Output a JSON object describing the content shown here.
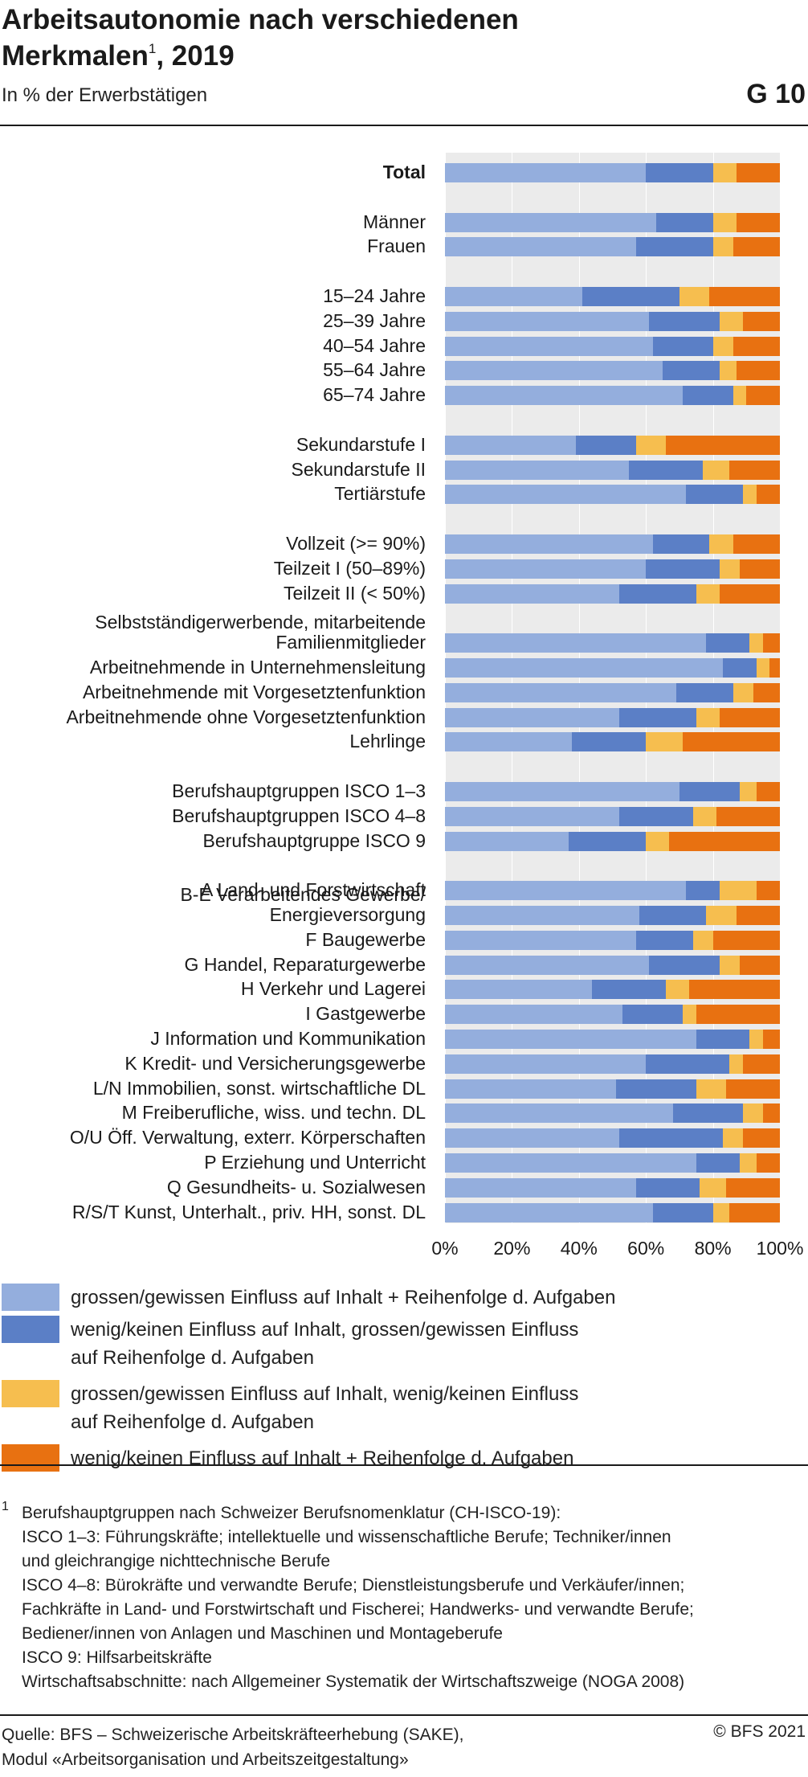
{
  "header": {
    "title": "Arbeitsautonomie nach verschiedenen\nMerkmalen",
    "title_footnote": "1",
    "title_suffix": ", 2019",
    "subtitle": "In % der Erwerbstätigen",
    "graphic_number": "G 10"
  },
  "chart_data": {
    "type": "bar",
    "orientation": "horizontal",
    "stacked": true,
    "title": "Arbeitsautonomie nach verschiedenen Merkmalen, 2019",
    "xlabel": "",
    "ylabel": "",
    "xlim": [
      0,
      100
    ],
    "x_ticks": [
      "0%",
      "20%",
      "40%",
      "60%",
      "80%",
      "100%"
    ],
    "grid": true,
    "legend_position": "bottom",
    "colors": [
      "#94aedd",
      "#5b7fc6",
      "#f6be4f",
      "#e87111"
    ],
    "categories": [
      "Total",
      "Männer",
      "Frauen",
      "15–24 Jahre",
      "25–39 Jahre",
      "40–54 Jahre",
      "55–64 Jahre",
      "65–74 Jahre",
      "Sekundarstufe I",
      "Sekundarstufe II",
      "Tertiärstufe",
      "Vollzeit (>= 90%)",
      "Teilzeit I (50–89%)",
      "Teilzeit II (< 50%)",
      "Selbstständigerwerbende, mitarbeitende\nFamilienmitglieder",
      "Arbeitnehmende in Unternehmensleitung",
      "Arbeitnehmende mit Vorgesetztenfunktion",
      "Arbeitnehmende ohne Vorgesetztenfunktion",
      "Lehrlinge",
      "Berufshauptgruppen ISCO 1–3",
      "Berufshauptgruppen ISCO 4–8",
      "Berufshauptgruppe ISCO 9",
      "A Land- und Forstwirtschaft",
      "B-E Verarbeitendes Gewerbe/\nEnergieversorgung",
      "F Baugewerbe",
      "G Handel, Reparaturgewerbe",
      "H Verkehr und Lagerei",
      "I Gastgewerbe",
      "J Information und Kommunikation",
      "K Kredit- und Versicherungsgewerbe",
      "L/N Immobilien, sonst. wirtschaftliche DL",
      "M Freiberufliche, wiss. und techn. DL",
      "O/U Öff. Verwaltung, exterr. Körperschaften",
      "P Erziehung und Unterricht",
      "Q Gesundheits- u. Sozialwesen",
      "R/S/T Kunst, Unterhalt., priv. HH, sonst. DL"
    ],
    "category_bold": [
      0
    ],
    "series": [
      {
        "name": "grossen/gewissen Einfluss auf Inhalt + Reihenfolge d. Aufgaben",
        "values": [
          60,
          63,
          57,
          41,
          61,
          62,
          65,
          71,
          39,
          55,
          72,
          62,
          60,
          52,
          78,
          83,
          69,
          52,
          38,
          70,
          52,
          37,
          72,
          58,
          57,
          61,
          44,
          53,
          75,
          60,
          51,
          68,
          52,
          75,
          57,
          62
        ]
      },
      {
        "name": "wenig/keinen Einfluss auf Inhalt, grossen/gewissen Einfluss\nauf Reihenfolge d. Aufgaben",
        "values": [
          20,
          17,
          23,
          29,
          21,
          18,
          17,
          15,
          18,
          22,
          17,
          17,
          22,
          23,
          13,
          10,
          17,
          23,
          22,
          18,
          22,
          23,
          10,
          20,
          17,
          21,
          22,
          18,
          16,
          25,
          24,
          21,
          31,
          13,
          19,
          18
        ]
      },
      {
        "name": "grossen/gewissen Einfluss auf Inhalt, wenig/keinen Einfluss\nauf Reihenfolge d. Aufgaben",
        "values": [
          7,
          7,
          6,
          9,
          7,
          6,
          5,
          4,
          9,
          8,
          4,
          7,
          6,
          7,
          4,
          4,
          6,
          7,
          11,
          5,
          7,
          7,
          11,
          9,
          6,
          6,
          7,
          4,
          4,
          4,
          9,
          6,
          6,
          5,
          8,
          5
        ]
      },
      {
        "name": "wenig/keinen Einfluss auf Inhalt + Reihenfolge d. Aufgaben",
        "values": [
          13,
          13,
          14,
          21,
          11,
          14,
          13,
          10,
          34,
          15,
          7,
          14,
          12,
          18,
          5,
          3,
          8,
          18,
          29,
          7,
          19,
          33,
          7,
          13,
          20,
          12,
          27,
          25,
          5,
          11,
          16,
          5,
          11,
          7,
          16,
          15
        ]
      }
    ]
  },
  "footnote": {
    "marker": "1",
    "text": "Berufshauptgruppen nach Schweizer Berufsnomenklatur (CH-ISCO-19):\nISCO 1–3: Führungskräfte; intellektuelle und wissenschaftliche Berufe; Techniker/innen\nund gleichrangige nichttechnische Berufe\nISCO 4–8: Bürokräfte und verwandte Berufe; Dienstleistungsberufe und Verkäufer/innen;\nFachkräfte in Land- und Forstwirtschaft und Fischerei; Handwerks- und verwandte Berufe;\nBediener/innen von Anlagen und Maschinen und Montageberufe\nISCO 9: Hilfsarbeitskräfte\nWirtschaftsabschnitte: nach Allgemeiner Systematik der Wirtschaftszweige (NOGA 2008)"
  },
  "source": "Quelle: BFS – Schweizerische Arbeitskräfteerhebung (SAKE),\n        Modul «Arbeitsorganisation und Arbeitszeitgestaltung»",
  "copyright": "© BFS 2021"
}
